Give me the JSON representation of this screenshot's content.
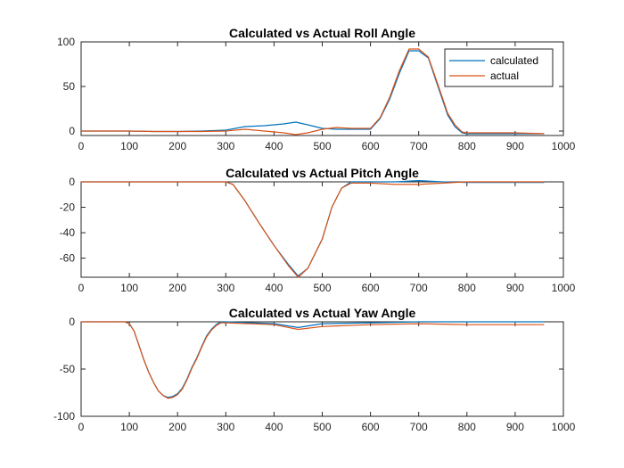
{
  "colors": {
    "calculated": "#0072BD",
    "actual": "#D95319",
    "axes": "#262626",
    "background": "#ffffff"
  },
  "chart_data": [
    {
      "type": "line",
      "title": "Calculated vs Actual Roll Angle",
      "xlabel": "",
      "ylabel": "",
      "xlim": [
        0,
        1000
      ],
      "ylim": [
        -5,
        100
      ],
      "xticks": [
        0,
        100,
        200,
        300,
        400,
        500,
        600,
        700,
        800,
        900,
        1000
      ],
      "yticks": [
        0,
        50,
        100
      ],
      "grid": false,
      "legend": {
        "position": "top-right",
        "entries": [
          "calculated",
          "actual"
        ]
      },
      "series": [
        {
          "name": "calculated",
          "x": [
            0,
            100,
            150,
            200,
            250,
            300,
            340,
            380,
            420,
            445,
            470,
            500,
            530,
            560,
            600,
            620,
            640,
            660,
            680,
            700,
            720,
            740,
            760,
            775,
            790,
            800,
            900,
            960
          ],
          "y": [
            0,
            0,
            -0.5,
            -0.5,
            0,
            1,
            5,
            6,
            8,
            10,
            7,
            3,
            2,
            2,
            2,
            14,
            36,
            65,
            90,
            90,
            82,
            50,
            18,
            5,
            -2,
            -3,
            -3,
            -3
          ]
        },
        {
          "name": "actual",
          "x": [
            0,
            100,
            150,
            200,
            250,
            300,
            340,
            380,
            420,
            445,
            470,
            500,
            530,
            560,
            600,
            620,
            640,
            660,
            680,
            700,
            720,
            740,
            760,
            775,
            790,
            800,
            900,
            960
          ],
          "y": [
            0,
            0,
            -0.5,
            -0.5,
            -0.5,
            0,
            2,
            0,
            -2,
            -4,
            -2,
            2,
            4,
            3,
            3,
            15,
            38,
            68,
            92,
            92,
            83,
            52,
            20,
            7,
            -1,
            -2,
            -2,
            -3
          ]
        }
      ]
    },
    {
      "type": "line",
      "title": "Calculated vs Actual Pitch Angle",
      "xlabel": "",
      "ylabel": "",
      "xlim": [
        0,
        1000
      ],
      "ylim": [
        -75,
        0
      ],
      "xticks": [
        0,
        100,
        200,
        300,
        400,
        500,
        600,
        700,
        800,
        900,
        1000
      ],
      "yticks": [
        0,
        -20,
        -40,
        -60
      ],
      "grid": false,
      "series": [
        {
          "name": "calculated",
          "x": [
            0,
            100,
            200,
            300,
            315,
            340,
            370,
            400,
            430,
            450,
            470,
            500,
            520,
            540,
            560,
            600,
            650,
            700,
            750,
            800,
            900,
            960
          ],
          "y": [
            0,
            0,
            0,
            0,
            -2,
            -15,
            -33,
            -50,
            -65,
            -74,
            -68,
            -45,
            -20,
            -5,
            0,
            0,
            0,
            1,
            0,
            -0.5,
            -0.5,
            -0.5
          ]
        },
        {
          "name": "actual",
          "x": [
            0,
            100,
            200,
            300,
            315,
            340,
            370,
            400,
            430,
            450,
            470,
            500,
            520,
            540,
            560,
            600,
            650,
            700,
            750,
            800,
            900,
            960
          ],
          "y": [
            0,
            0,
            0,
            0,
            -2,
            -15,
            -33,
            -50,
            -66,
            -75,
            -68,
            -45,
            -20,
            -5,
            -1,
            -1,
            -2,
            -2,
            -1,
            0,
            0,
            0
          ]
        }
      ]
    },
    {
      "type": "line",
      "title": "Calculated vs Actual Yaw Angle",
      "xlabel": "",
      "ylabel": "",
      "xlim": [
        0,
        1000
      ],
      "ylim": [
        -100,
        0
      ],
      "xticks": [
        0,
        100,
        200,
        300,
        400,
        500,
        600,
        700,
        800,
        900,
        1000
      ],
      "yticks": [
        0,
        -50,
        -100
      ],
      "grid": false,
      "series": [
        {
          "name": "calculated",
          "x": [
            0,
            90,
            100,
            110,
            120,
            130,
            140,
            150,
            160,
            170,
            180,
            190,
            200,
            210,
            220,
            230,
            240,
            250,
            260,
            270,
            280,
            290,
            300,
            400,
            450,
            500,
            600,
            700,
            800,
            900,
            960
          ],
          "y": [
            0,
            0,
            -2,
            -10,
            -25,
            -40,
            -53,
            -64,
            -73,
            -78,
            -80,
            -79,
            -76,
            -70,
            -60,
            -48,
            -38,
            -26,
            -15,
            -8,
            -3,
            0,
            0,
            -2,
            -6,
            -2,
            -1,
            0,
            0,
            0,
            0
          ]
        },
        {
          "name": "actual",
          "x": [
            0,
            90,
            100,
            110,
            120,
            130,
            140,
            150,
            160,
            170,
            180,
            190,
            200,
            210,
            220,
            230,
            240,
            250,
            260,
            270,
            280,
            290,
            300,
            400,
            450,
            500,
            600,
            700,
            800,
            900,
            960
          ],
          "y": [
            0,
            0,
            -2,
            -10,
            -25,
            -40,
            -53,
            -64,
            -73,
            -78,
            -81,
            -80,
            -77,
            -71,
            -61,
            -49,
            -39,
            -27,
            -16,
            -9,
            -4,
            -1,
            -1,
            -3,
            -8,
            -5,
            -3,
            -2,
            -3,
            -3,
            -3
          ]
        }
      ]
    }
  ]
}
